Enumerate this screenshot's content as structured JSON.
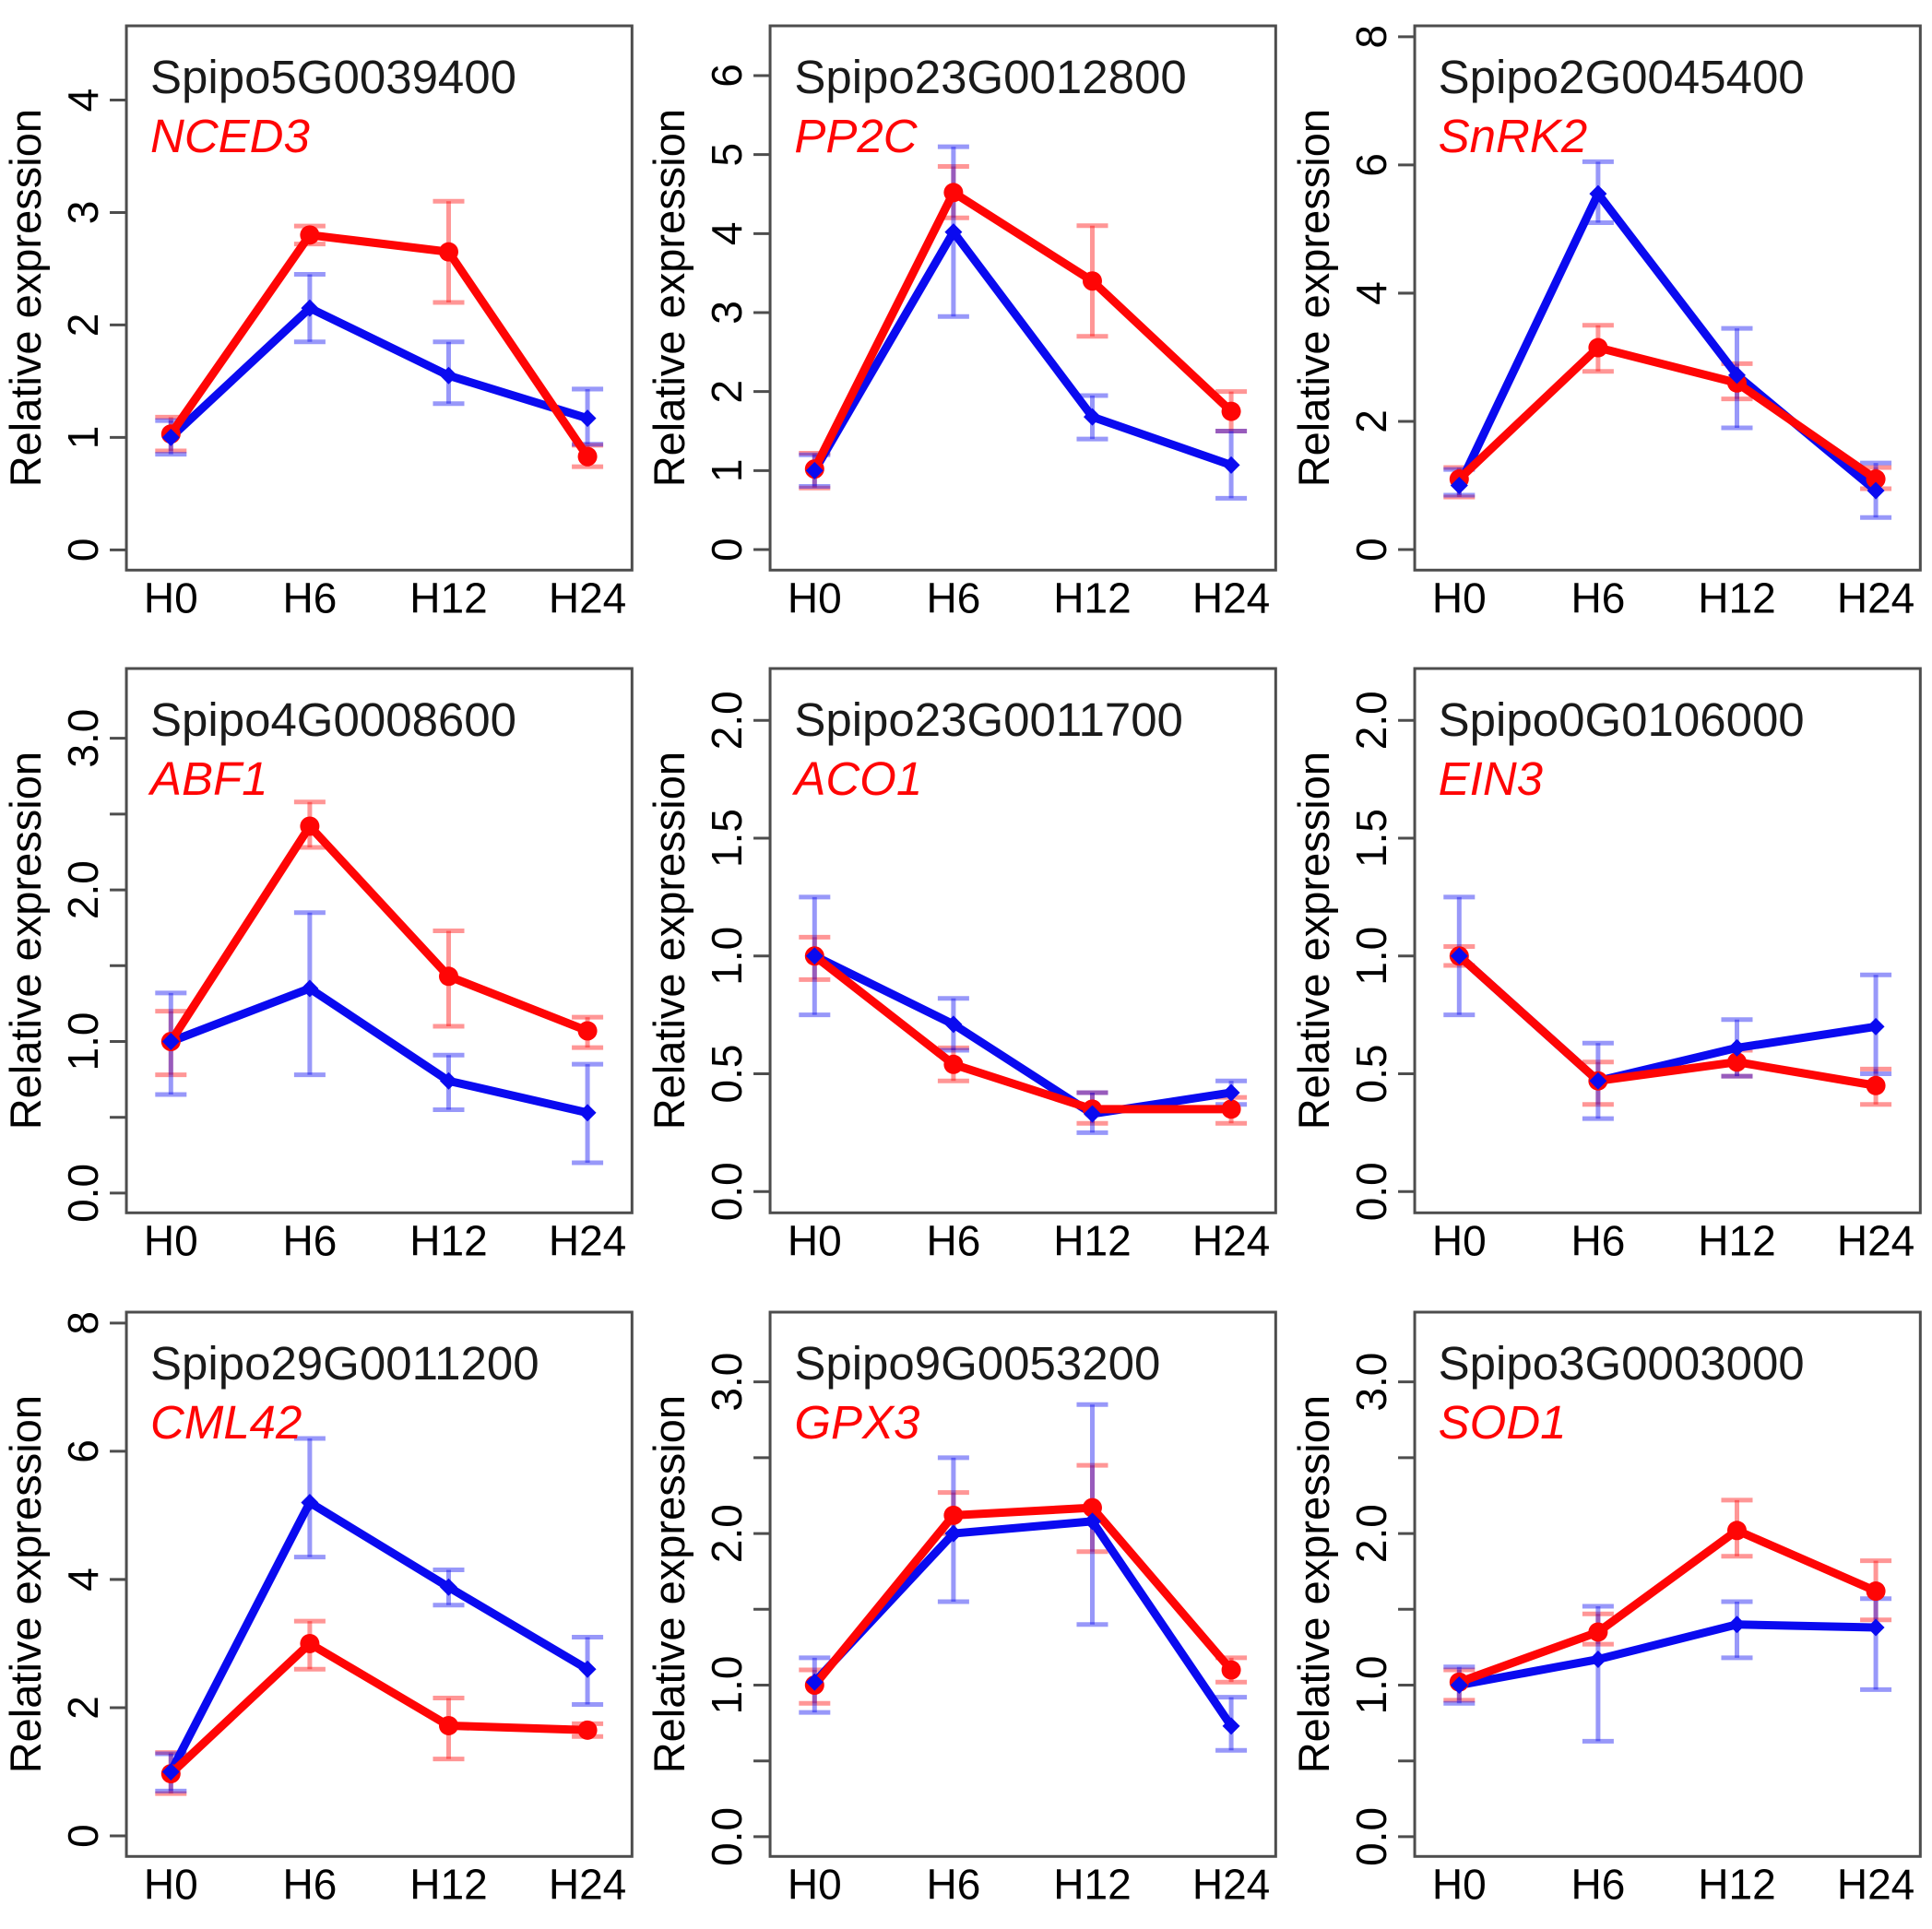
{
  "figure": {
    "ylabel": "Relative expression",
    "categories": [
      "H0",
      "H6",
      "H12",
      "H24"
    ]
  },
  "style": {
    "red": "#FF0505",
    "blue": "#0A0AF0",
    "red_err": "rgba(255,5,5,0.42)",
    "blue_err": "rgba(10,10,240,0.42)",
    "frame": "#4D4D4D",
    "text": "#000000"
  },
  "chart_data": [
    {
      "type": "line",
      "gene_id": "Spipo5G0039400",
      "gene_name": "NCED3",
      "ylabel": "Relative expression",
      "categories": [
        "H0",
        "H6",
        "H12",
        "H24"
      ],
      "ylim": [
        -0.18,
        4.66
      ],
      "yticks": [
        0,
        1,
        2,
        3,
        4
      ],
      "ytick_labels": [
        "0",
        "1",
        "2",
        "3",
        "4"
      ],
      "yticks_minor": [],
      "series": [
        {
          "name": "red",
          "color_key": "red",
          "marker": "circle",
          "values": [
            1.03,
            2.8,
            2.65,
            0.83
          ],
          "err_lo": [
            0.88,
            2.72,
            2.2,
            0.74
          ],
          "err_hi": [
            1.18,
            2.88,
            3.1,
            0.93
          ]
        },
        {
          "name": "blue",
          "color_key": "blue",
          "marker": "diamond",
          "values": [
            1.0,
            2.15,
            1.55,
            1.17
          ],
          "err_lo": [
            0.85,
            1.85,
            1.3,
            0.94
          ],
          "err_hi": [
            1.15,
            2.45,
            1.85,
            1.43
          ]
        }
      ]
    },
    {
      "type": "line",
      "gene_id": "Spipo23G0012800",
      "gene_name": "PP2C",
      "ylabel": "Relative expression",
      "categories": [
        "H0",
        "H6",
        "H12",
        "H24"
      ],
      "ylim": [
        -0.26,
        6.63
      ],
      "yticks": [
        0,
        1,
        2,
        3,
        4,
        5,
        6
      ],
      "ytick_labels": [
        "0",
        "1",
        "2",
        "3",
        "4",
        "5",
        "6"
      ],
      "yticks_minor": [],
      "series": [
        {
          "name": "red",
          "color_key": "red",
          "marker": "circle",
          "values": [
            1.02,
            4.52,
            3.4,
            1.75
          ],
          "err_lo": [
            0.78,
            4.2,
            2.7,
            1.5
          ],
          "err_hi": [
            1.22,
            4.85,
            4.1,
            2.0
          ]
        },
        {
          "name": "blue",
          "color_key": "blue",
          "marker": "diamond",
          "values": [
            1.0,
            4.02,
            1.68,
            1.07
          ],
          "err_lo": [
            0.8,
            2.95,
            1.4,
            0.65
          ],
          "err_hi": [
            1.2,
            5.1,
            1.95,
            1.5
          ]
        }
      ]
    },
    {
      "type": "line",
      "gene_id": "Spipo2G0045400",
      "gene_name": "SnRK2",
      "ylabel": "Relative expression",
      "categories": [
        "H0",
        "H6",
        "H12",
        "H24"
      ],
      "ylim": [
        -0.32,
        8.17
      ],
      "yticks": [
        0,
        2,
        4,
        6,
        8
      ],
      "ytick_labels": [
        "0",
        "2",
        "4",
        "6",
        "8"
      ],
      "yticks_minor": [],
      "series": [
        {
          "name": "red",
          "color_key": "red",
          "marker": "circle",
          "values": [
            1.1,
            3.15,
            2.6,
            1.1
          ],
          "err_lo": [
            0.82,
            2.78,
            2.35,
            0.95
          ],
          "err_hi": [
            1.28,
            3.5,
            2.9,
            1.28
          ]
        },
        {
          "name": "blue",
          "color_key": "blue",
          "marker": "diamond",
          "values": [
            1.0,
            5.55,
            2.72,
            0.92
          ],
          "err_lo": [
            0.85,
            5.1,
            1.9,
            0.5
          ],
          "err_hi": [
            1.25,
            6.05,
            3.45,
            1.35
          ]
        }
      ]
    },
    {
      "type": "line",
      "gene_id": "Spipo4G0008600",
      "gene_name": "ABF1",
      "ylabel": "Relative expression",
      "categories": [
        "H0",
        "H6",
        "H12",
        "H24"
      ],
      "ylim": [
        -0.13,
        3.46
      ],
      "yticks": [
        0,
        1,
        2,
        3
      ],
      "ytick_labels": [
        "0.0",
        "1.0",
        "2.0",
        "3.0"
      ],
      "yticks_minor": [
        0.5,
        1.5,
        2.5
      ],
      "series": [
        {
          "name": "red",
          "color_key": "red",
          "marker": "circle",
          "values": [
            1.0,
            2.42,
            1.43,
            1.07
          ],
          "err_lo": [
            0.78,
            2.28,
            1.1,
            0.96
          ],
          "err_hi": [
            1.2,
            2.58,
            1.73,
            1.16
          ]
        },
        {
          "name": "blue",
          "color_key": "blue",
          "marker": "diamond",
          "values": [
            1.0,
            1.35,
            0.74,
            0.53
          ],
          "err_lo": [
            0.65,
            0.78,
            0.55,
            0.2
          ],
          "err_hi": [
            1.32,
            1.85,
            0.91,
            0.85
          ]
        }
      ]
    },
    {
      "type": "line",
      "gene_id": "Spipo23G0011700",
      "gene_name": "ACO1",
      "ylabel": "Relative expression",
      "categories": [
        "H0",
        "H6",
        "H12",
        "H24"
      ],
      "ylim": [
        -0.09,
        2.22
      ],
      "yticks": [
        0,
        0.5,
        1,
        1.5,
        2
      ],
      "ytick_labels": [
        "0.0",
        "0.5",
        "1.0",
        "1.5",
        "2.0"
      ],
      "yticks_minor": [],
      "series": [
        {
          "name": "red",
          "color_key": "red",
          "marker": "circle",
          "values": [
            1.0,
            0.54,
            0.35,
            0.35
          ],
          "err_lo": [
            0.9,
            0.47,
            0.29,
            0.29
          ],
          "err_hi": [
            1.08,
            0.61,
            0.42,
            0.4
          ]
        },
        {
          "name": "blue",
          "color_key": "blue",
          "marker": "diamond",
          "values": [
            1.0,
            0.71,
            0.33,
            0.42
          ],
          "err_lo": [
            0.75,
            0.6,
            0.25,
            0.37
          ],
          "err_hi": [
            1.25,
            0.82,
            0.42,
            0.47
          ]
        }
      ]
    },
    {
      "type": "line",
      "gene_id": "Spipo0G0106000",
      "gene_name": "EIN3",
      "ylabel": "Relative expression",
      "categories": [
        "H0",
        "H6",
        "H12",
        "H24"
      ],
      "ylim": [
        -0.09,
        2.22
      ],
      "yticks": [
        0,
        0.5,
        1,
        1.5,
        2
      ],
      "ytick_labels": [
        "0.0",
        "0.5",
        "1.0",
        "1.5",
        "2.0"
      ],
      "yticks_minor": [],
      "series": [
        {
          "name": "red",
          "color_key": "red",
          "marker": "circle",
          "values": [
            1.0,
            0.47,
            0.55,
            0.45
          ],
          "err_lo": [
            0.96,
            0.37,
            0.49,
            0.37
          ],
          "err_hi": [
            1.04,
            0.55,
            0.6,
            0.52
          ]
        },
        {
          "name": "blue",
          "color_key": "blue",
          "marker": "diamond",
          "values": [
            1.0,
            0.47,
            0.61,
            0.7
          ],
          "err_lo": [
            0.75,
            0.31,
            0.49,
            0.5
          ],
          "err_hi": [
            1.25,
            0.63,
            0.73,
            0.92
          ]
        }
      ]
    },
    {
      "type": "line",
      "gene_id": "Spipo29G0011200",
      "gene_name": "CML42",
      "ylabel": "Relative expression",
      "categories": [
        "H0",
        "H6",
        "H12",
        "H24"
      ],
      "ylim": [
        -0.32,
        8.17
      ],
      "yticks": [
        0,
        2,
        4,
        6,
        8
      ],
      "ytick_labels": [
        "0",
        "2",
        "4",
        "6",
        "8"
      ],
      "yticks_minor": [],
      "series": [
        {
          "name": "red",
          "color_key": "red",
          "marker": "circle",
          "values": [
            0.97,
            3.0,
            1.72,
            1.65
          ],
          "err_lo": [
            0.66,
            2.6,
            1.2,
            1.55
          ],
          "err_hi": [
            1.3,
            3.35,
            2.15,
            1.75
          ]
        },
        {
          "name": "blue",
          "color_key": "blue",
          "marker": "diamond",
          "values": [
            1.0,
            5.2,
            3.88,
            2.6
          ],
          "err_lo": [
            0.7,
            4.35,
            3.6,
            2.05
          ],
          "err_hi": [
            1.28,
            6.2,
            4.15,
            3.1
          ]
        }
      ]
    },
    {
      "type": "line",
      "gene_id": "Spipo9G0053200",
      "gene_name": "GPX3",
      "ylabel": "Relative expression",
      "categories": [
        "H0",
        "H6",
        "H12",
        "H24"
      ],
      "ylim": [
        -0.13,
        3.46
      ],
      "yticks": [
        0,
        1,
        2,
        3
      ],
      "ytick_labels": [
        "0.0",
        "1.0",
        "2.0",
        "3.0"
      ],
      "yticks_minor": [
        0.5,
        1.5,
        2.5
      ],
      "series": [
        {
          "name": "red",
          "color_key": "red",
          "marker": "circle",
          "values": [
            1.0,
            2.12,
            2.17,
            1.1
          ],
          "err_lo": [
            0.88,
            2.0,
            1.88,
            1.02
          ],
          "err_hi": [
            1.1,
            2.27,
            2.45,
            1.18
          ]
        },
        {
          "name": "blue",
          "color_key": "blue",
          "marker": "diamond",
          "values": [
            1.02,
            2.0,
            2.08,
            0.73
          ],
          "err_lo": [
            0.82,
            1.55,
            1.4,
            0.57
          ],
          "err_hi": [
            1.18,
            2.5,
            2.85,
            0.92
          ]
        }
      ]
    },
    {
      "type": "line",
      "gene_id": "Spipo3G0003000",
      "gene_name": "SOD1",
      "ylabel": "Relative expression",
      "categories": [
        "H0",
        "H6",
        "H12",
        "H24"
      ],
      "ylim": [
        -0.13,
        3.46
      ],
      "yticks": [
        0,
        1,
        2,
        3
      ],
      "ytick_labels": [
        "0.0",
        "1.0",
        "2.0",
        "3.0"
      ],
      "yticks_minor": [
        0.5,
        1.5,
        2.5
      ],
      "series": [
        {
          "name": "red",
          "color_key": "red",
          "marker": "circle",
          "values": [
            1.02,
            1.35,
            2.02,
            1.62
          ],
          "err_lo": [
            0.9,
            1.27,
            1.85,
            1.43
          ],
          "err_hi": [
            1.1,
            1.47,
            2.22,
            1.82
          ]
        },
        {
          "name": "blue",
          "color_key": "blue",
          "marker": "diamond",
          "values": [
            1.0,
            1.17,
            1.4,
            1.38
          ],
          "err_lo": [
            0.88,
            0.63,
            1.18,
            0.97
          ],
          "err_hi": [
            1.12,
            1.52,
            1.55,
            1.57
          ]
        }
      ]
    }
  ]
}
